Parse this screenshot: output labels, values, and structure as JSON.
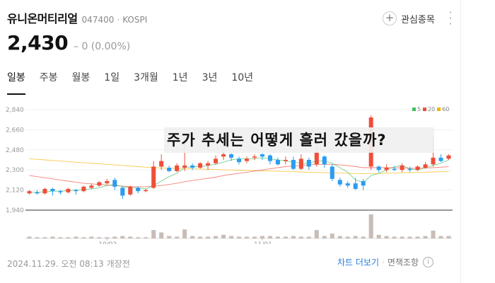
{
  "stock": {
    "name": "유니온머티리얼",
    "code": "047400",
    "market": "KOSPI",
    "price": "2,430",
    "change": "0 (0.00%)"
  },
  "header": {
    "favorite_label": "관심종목",
    "more_icon": "more-vertical-icon"
  },
  "tabs": [
    "일봉",
    "주봉",
    "월봉",
    "1일",
    "3개월",
    "1년",
    "3년",
    "10년"
  ],
  "active_tab": 0,
  "overlay_text": "주가 추세는 어떻게 흘러 갔을까?",
  "legend": [
    {
      "label": "5",
      "color": "#3fbf5f"
    },
    {
      "label": "20",
      "color": "#ef4e3a"
    },
    {
      "label": "60",
      "color": "#f5b400"
    }
  ],
  "colors": {
    "up": "#ef4e3a",
    "down": "#2b9cf0",
    "volume": "#c8bdb6"
  },
  "chart_data": {
    "type": "candlestick",
    "y_ticks": [
      "2,840",
      "2,660",
      "2,480",
      "2,300",
      "2,120",
      "1,940"
    ],
    "y_range": [
      1940,
      2840
    ],
    "x_labels": [
      {
        "label": "10/02",
        "index": 10
      },
      {
        "label": "11/01",
        "index": 30
      }
    ],
    "candles": [
      [
        2090,
        2110,
        2080,
        2120
      ],
      [
        2100,
        2090,
        2080,
        2120
      ],
      [
        2090,
        2130,
        2080,
        2140
      ],
      [
        2130,
        2110,
        2070,
        2140
      ],
      [
        2110,
        2100,
        2080,
        2120
      ],
      [
        2100,
        2130,
        2090,
        2140
      ],
      [
        2120,
        2110,
        2080,
        2130
      ],
      [
        2110,
        2150,
        2100,
        2160
      ],
      [
        2140,
        2160,
        2130,
        2180
      ],
      [
        2160,
        2190,
        2150,
        2200
      ],
      [
        2180,
        2200,
        2170,
        2220
      ],
      [
        2210,
        2150,
        2120,
        2230
      ],
      [
        2140,
        2070,
        2040,
        2150
      ],
      [
        2080,
        2150,
        2070,
        2160
      ],
      [
        2140,
        2110,
        2090,
        2150
      ],
      [
        2110,
        2120,
        2100,
        2130
      ],
      [
        2140,
        2330,
        2130,
        2380
      ],
      [
        2330,
        2380,
        2300,
        2440
      ],
      [
        2320,
        2290,
        2280,
        2340
      ],
      [
        2290,
        2340,
        2280,
        2360
      ],
      [
        2320,
        2340,
        2290,
        2600
      ],
      [
        2340,
        2320,
        2300,
        2360
      ],
      [
        2320,
        2360,
        2310,
        2370
      ],
      [
        2340,
        2360,
        2300,
        2380
      ],
      [
        2360,
        2400,
        2350,
        2430
      ],
      [
        2420,
        2440,
        2390,
        2480
      ],
      [
        2440,
        2410,
        2380,
        2450
      ],
      [
        2400,
        2370,
        2350,
        2420
      ],
      [
        2380,
        2400,
        2360,
        2420
      ],
      [
        2410,
        2420,
        2390,
        2440
      ],
      [
        2440,
        2420,
        2390,
        2450
      ],
      [
        2430,
        2380,
        2350,
        2440
      ],
      [
        2390,
        2350,
        2340,
        2410
      ],
      [
        2380,
        2390,
        2350,
        2420
      ],
      [
        2390,
        2310,
        2300,
        2420
      ],
      [
        2310,
        2400,
        2300,
        2440
      ],
      [
        2390,
        2330,
        2300,
        2410
      ],
      [
        2350,
        2460,
        2330,
        2540
      ],
      [
        2420,
        2350,
        2320,
        2430
      ],
      [
        2330,
        2220,
        2200,
        2350
      ],
      [
        2210,
        2170,
        2150,
        2230
      ],
      [
        2180,
        2160,
        2140,
        2200
      ],
      [
        2180,
        2130,
        2120,
        2230
      ],
      [
        2200,
        2160,
        2120,
        2220
      ],
      [
        2330,
        2770,
        2300,
        2790
      ],
      [
        2330,
        2300,
        2280,
        2340
      ],
      [
        2300,
        2320,
        2280,
        2350
      ],
      [
        2310,
        2300,
        2290,
        2330
      ],
      [
        2300,
        2340,
        2280,
        2360
      ],
      [
        2310,
        2300,
        2280,
        2330
      ],
      [
        2300,
        2330,
        2290,
        2340
      ],
      [
        2320,
        2350,
        2310,
        2370
      ],
      [
        2350,
        2410,
        2330,
        2600
      ],
      [
        2410,
        2380,
        2370,
        2440
      ],
      [
        2400,
        2430,
        2390,
        2440
      ]
    ],
    "ma5": [
      2100,
      2100,
      2105,
      2110,
      2110,
      2115,
      2120,
      2125,
      2130,
      2140,
      2160,
      2170,
      2150,
      2140,
      2140,
      2130,
      2160,
      2200,
      2240,
      2270,
      2320,
      2330,
      2330,
      2340,
      2350,
      2370,
      2390,
      2400,
      2400,
      2400,
      2410,
      2400,
      2390,
      2380,
      2370,
      2360,
      2360,
      2380,
      2380,
      2360,
      2320,
      2280,
      2210,
      2190,
      2250,
      2270,
      2300,
      2330,
      2340,
      2310,
      2300,
      2320,
      2340,
      2360,
      2390
    ],
    "ma20": [
      2250,
      2240,
      2230,
      2220,
      2210,
      2200,
      2190,
      2180,
      2175,
      2170,
      2165,
      2160,
      2155,
      2150,
      2150,
      2150,
      2155,
      2160,
      2170,
      2180,
      2195,
      2205,
      2215,
      2225,
      2235,
      2250,
      2260,
      2270,
      2280,
      2290,
      2300,
      2310,
      2320,
      2330,
      2335,
      2340,
      2345,
      2350,
      2350,
      2350,
      2345,
      2340,
      2330,
      2320,
      2320,
      2320,
      2320,
      2320,
      2318,
      2315,
      2315,
      2318,
      2320,
      2325,
      2330
    ],
    "ma60": [
      2400,
      2395,
      2390,
      2385,
      2380,
      2375,
      2370,
      2365,
      2360,
      2355,
      2350,
      2345,
      2340,
      2335,
      2330,
      2325,
      2320,
      2318,
      2316,
      2314,
      2312,
      2310,
      2308,
      2306,
      2304,
      2302,
      2300,
      2298,
      2296,
      2294,
      2292,
      2290,
      2288,
      2286,
      2284,
      2282,
      2280,
      2278,
      2276,
      2274,
      2272,
      2270,
      2268,
      2266,
      2266,
      2268,
      2270,
      2272,
      2274,
      2276,
      2278,
      2280,
      2282,
      2284,
      2286
    ],
    "volume": [
      3,
      2,
      2,
      3,
      2,
      2,
      3,
      2,
      3,
      2,
      2,
      3,
      4,
      3,
      2,
      2,
      14,
      10,
      4,
      3,
      15,
      4,
      3,
      3,
      4,
      6,
      4,
      3,
      3,
      3,
      4,
      4,
      3,
      3,
      4,
      3,
      3,
      14,
      4,
      8,
      4,
      3,
      4,
      3,
      40,
      6,
      4,
      3,
      3,
      3,
      3,
      4,
      13,
      4,
      4
    ]
  },
  "footer": {
    "timestamp": "2024.11.29. 오전 08:13 개장전",
    "chart_more": "차트 더보기",
    "notice": "면책조항"
  }
}
